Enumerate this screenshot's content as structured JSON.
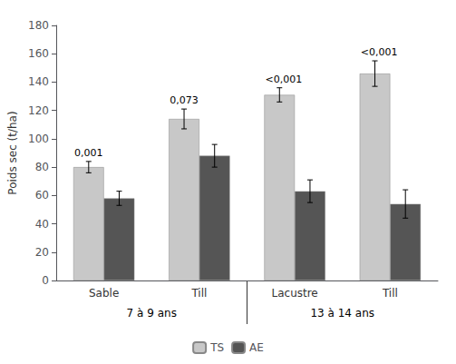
{
  "chart_data": {
    "type": "bar",
    "categories": [
      "Sable",
      "Till",
      "Lacustre",
      "Till"
    ],
    "category_groups": [
      {
        "label": "7 à 9 ans",
        "size": 2
      },
      {
        "label": "13 à 14 ans",
        "size": 2
      }
    ],
    "series": [
      {
        "name": "TS",
        "color": "#c8c8c8",
        "values": [
          80,
          114,
          131,
          146
        ],
        "errors": [
          4,
          7,
          5,
          9
        ],
        "annotations": [
          "0,001",
          "0,073",
          "<0,001",
          "<0,001"
        ]
      },
      {
        "name": "AE",
        "color": "#555555",
        "values": [
          58,
          88,
          63,
          54
        ],
        "errors": [
          5,
          8,
          8,
          10
        ]
      }
    ],
    "ylabel": "Poids sec (t/ha)",
    "ylim": [
      0,
      180
    ],
    "yticks": [
      0,
      20,
      40,
      60,
      80,
      100,
      120,
      140,
      160,
      180
    ],
    "grid": false,
    "legend": "bottom"
  }
}
